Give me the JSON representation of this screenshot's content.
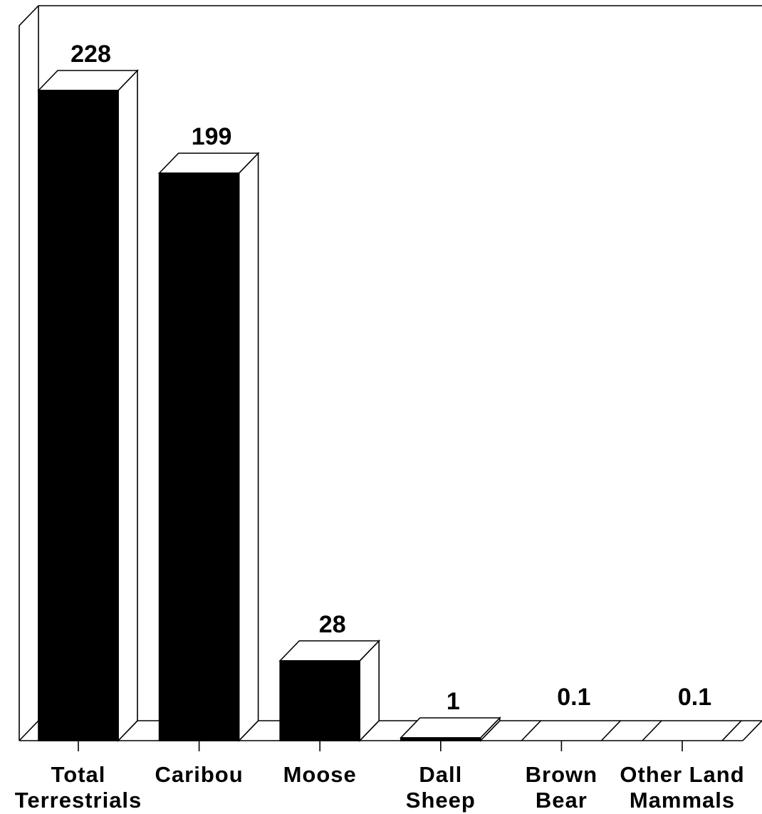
{
  "chart_data": {
    "type": "bar",
    "style": "3d",
    "title": "",
    "xlabel": "",
    "ylabel": "",
    "ylim": [
      0,
      250
    ],
    "grid": false,
    "legend": "none",
    "bar_color": "#000000",
    "categories": [
      [
        "Total",
        "Terrestrials"
      ],
      [
        "Caribou"
      ],
      [
        "Moose"
      ],
      [
        "Dall",
        "Sheep"
      ],
      [
        "Brown",
        "Bear"
      ],
      [
        "Other Land",
        "Mammals"
      ]
    ],
    "values": [
      228,
      199,
      28,
      1,
      0.1,
      0.1
    ],
    "data_labels": [
      "228",
      "199",
      "28",
      "1",
      "0.1",
      "0.1"
    ]
  }
}
